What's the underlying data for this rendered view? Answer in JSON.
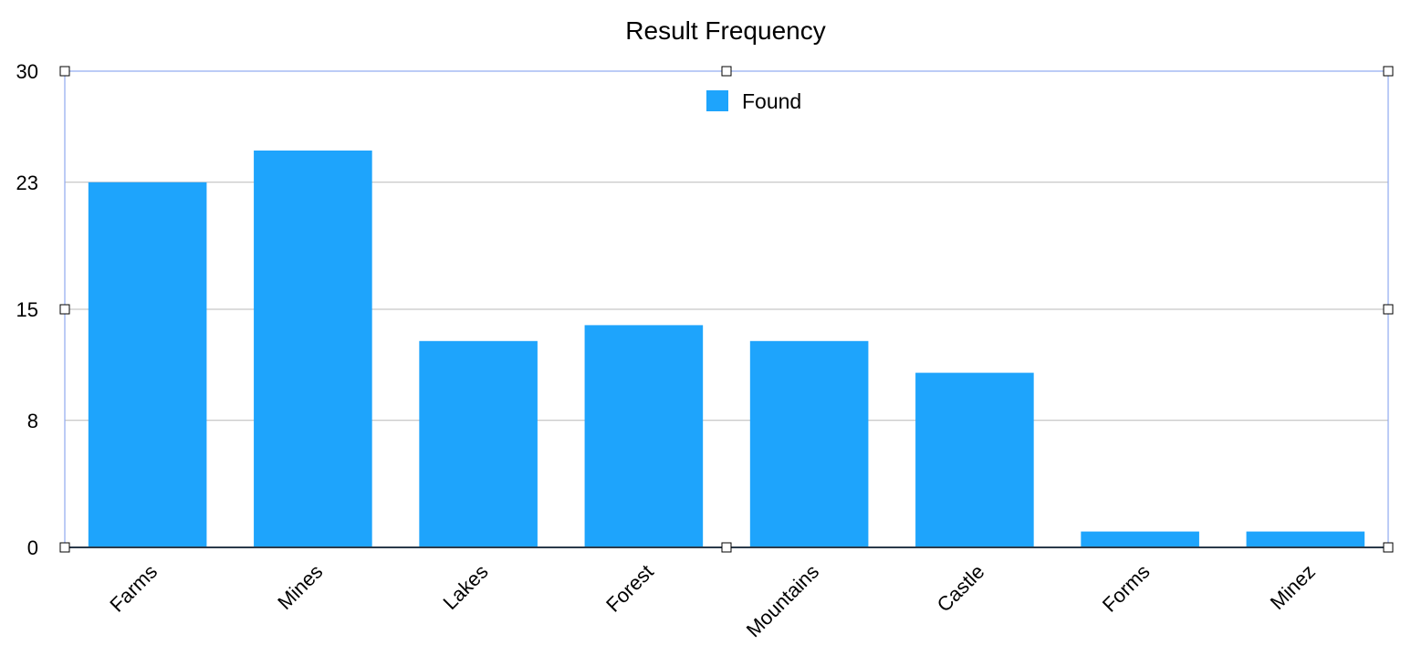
{
  "chart_data": {
    "type": "bar",
    "title": "Result Frequency",
    "xlabel": "",
    "ylabel": "",
    "categories": [
      "Farms",
      "Mines",
      "Lakes",
      "Forest",
      "Mountains",
      "Castle",
      "Forms",
      "Minez"
    ],
    "series": [
      {
        "name": "Found",
        "values": [
          23,
          25,
          13,
          14,
          13,
          11,
          1,
          1
        ]
      }
    ],
    "ylim": [
      0,
      30
    ],
    "yticks": [
      "0",
      "8",
      "15",
      "23",
      "30"
    ],
    "grid": true,
    "legend_position": "top-center",
    "colors": {
      "bar": "#1ea4fc",
      "grid": "#b9b9b9",
      "selection": "#8fa9f0",
      "baseline": "#2b3a4a"
    }
  }
}
